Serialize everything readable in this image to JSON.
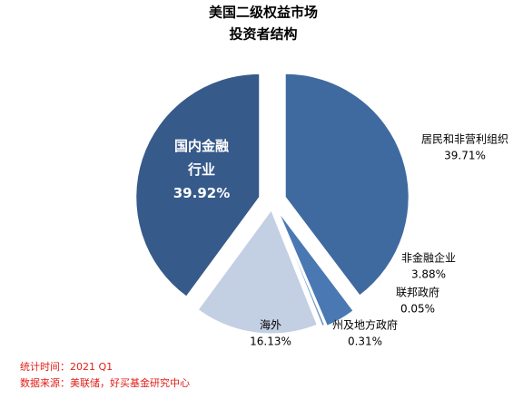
{
  "chart_data": {
    "type": "pie",
    "title": "美国二级权益市场",
    "subtitle": "投资者结构",
    "categories": [
      "居民和非营利组织",
      "非金融企业",
      "联邦政府",
      "州及地方政府",
      "海外",
      "国内金融行业"
    ],
    "values": [
      39.71,
      3.88,
      0.05,
      0.31,
      16.13,
      39.92
    ],
    "value_labels": [
      "39.71%",
      "3.88%",
      "0.05%",
      "0.31%",
      "16.13%",
      "39.92%"
    ],
    "colors": [
      "#3f6aa0",
      "#4a78b3",
      "#5a86c0",
      "#7096c8",
      "#c3cfe3",
      "#365a8a"
    ]
  },
  "footnotes": [
    "统计时间：2021 Q1",
    "数据来源：美联储，好买基金研究中心"
  ]
}
